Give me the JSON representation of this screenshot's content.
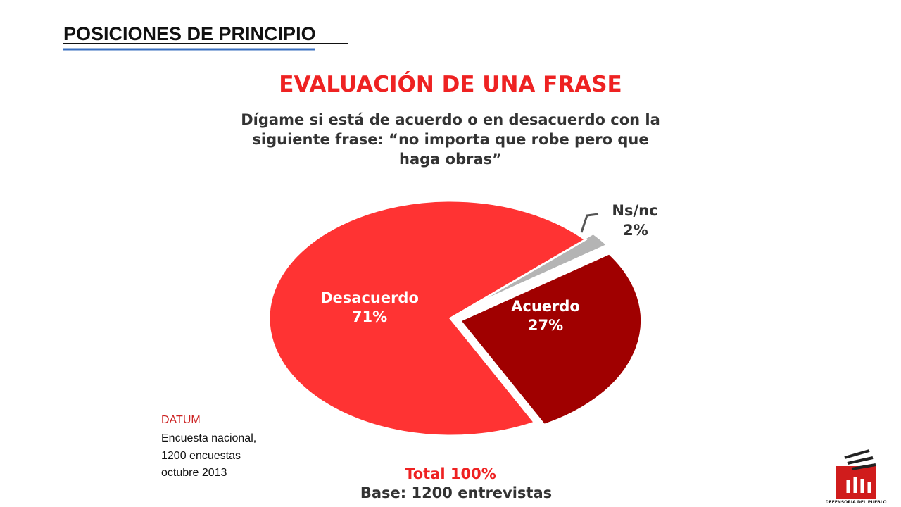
{
  "slide_title": "POSICIONES DE PRINCIPIO",
  "chart_data": {
    "type": "pie",
    "title": "EVALUACIÓN DE UNA FRASE",
    "subtitle": [
      "Dígame si está de acuerdo o en desacuerdo con la",
      "siguiente frase:   “no importa que robe pero que",
      "haga obras”"
    ],
    "categories": [
      "Ns/nc",
      "Acuerdo",
      "Desacuerdo"
    ],
    "values": [
      2,
      27,
      71
    ],
    "value_labels": [
      "2%",
      "27%",
      "71%"
    ],
    "colors": [
      "#b4b4b4",
      "#a00000",
      "#ff3333"
    ],
    "footer": [
      "Total 100%",
      "Base:  1200 entrevistas"
    ]
  },
  "source": {
    "name": "DATUM",
    "lines": [
      "Encuesta nacional,",
      "1200 encuestas",
      "octubre 2013"
    ]
  },
  "logo_text": "DEFENSORIA DEL PUEBLO"
}
